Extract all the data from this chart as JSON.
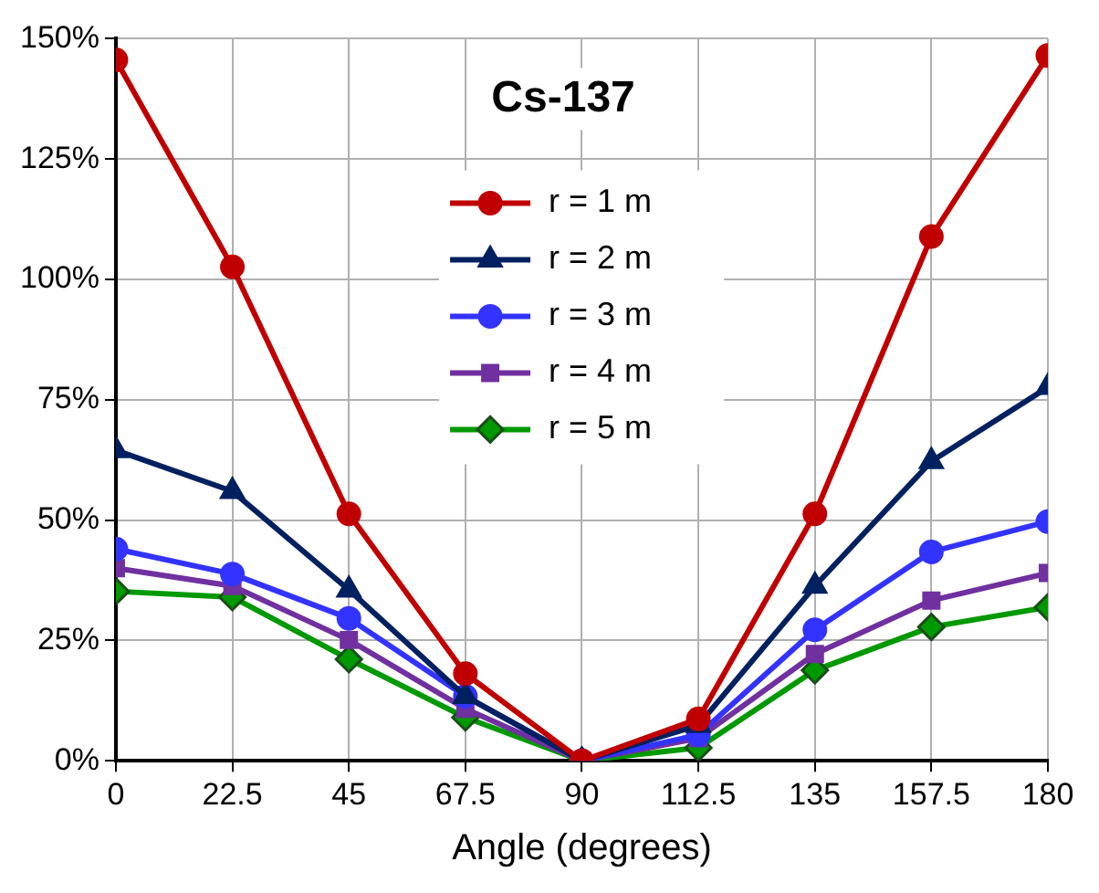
{
  "chart_data": {
    "type": "line",
    "title": "Cs-137",
    "xlabel": "Angle (degrees)",
    "x": [
      0,
      22.5,
      45,
      67.5,
      90,
      112.5,
      135,
      157.5,
      180
    ],
    "xlim": [
      0,
      180
    ],
    "xticks": [
      0,
      22.5,
      45,
      67.5,
      90,
      112.5,
      135,
      157.5,
      180
    ],
    "ylim": [
      0,
      150
    ],
    "yticks": [
      {
        "value": 0,
        "label": "0%"
      },
      {
        "value": 25,
        "label": "25%"
      },
      {
        "value": 50,
        "label": "50%"
      },
      {
        "value": 75,
        "label": "75%"
      },
      {
        "value": 100,
        "label": "100%"
      },
      {
        "value": 125,
        "label": "125%"
      },
      {
        "value": 150,
        "label": "150%"
      }
    ],
    "grid": true,
    "legend": "top",
    "line_style": "solid",
    "series": [
      {
        "name": "r = 1 m",
        "color": "#c00000",
        "marker": "circle",
        "values": [
          145.6,
          102.6,
          51.3,
          18.1,
          0,
          8.7,
          51.3,
          108.9,
          146.5
        ]
      },
      {
        "name": "r = 2 m",
        "color": "#002060",
        "marker": "triangle",
        "values": [
          64.5,
          56,
          35.5,
          13.4,
          0,
          7.4,
          36.3,
          62.2,
          77.6
        ]
      },
      {
        "name": "r = 3 m",
        "color": "#3333ff",
        "marker": "circle",
        "values": [
          44,
          38.8,
          29.6,
          13.4,
          0,
          5.4,
          27.2,
          43.4,
          49.7
        ]
      },
      {
        "name": "r = 4 m",
        "color": "#7030a0",
        "marker": "square",
        "values": [
          40,
          36.3,
          25.1,
          10.8,
          0,
          4.7,
          22.2,
          33.3,
          39
        ]
      },
      {
        "name": "r = 5 m",
        "color": "#009900",
        "marker": "diamond",
        "values": [
          35.2,
          34,
          21.1,
          9,
          0,
          2.7,
          18.8,
          27.8,
          31.9
        ]
      }
    ]
  }
}
